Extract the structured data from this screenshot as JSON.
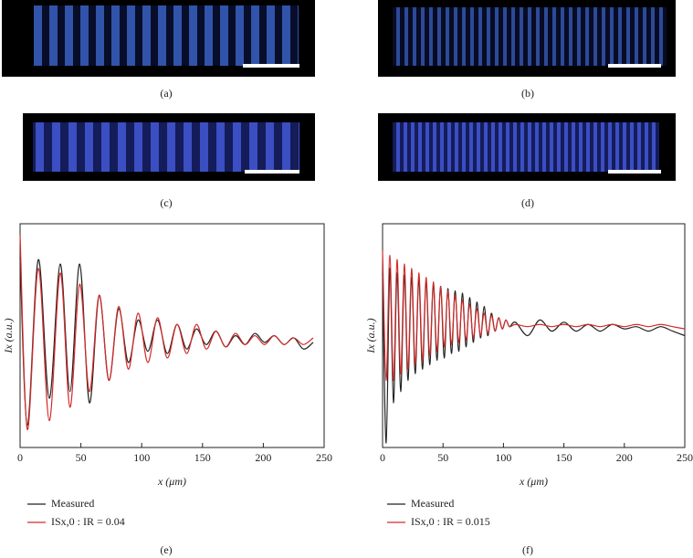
{
  "figure": {
    "panel_labels": [
      "(a)",
      "(b)",
      "(c)",
      "(d)",
      "(e)",
      "(f)"
    ]
  },
  "chart_data": [
    {
      "type": "line",
      "x_label": "x (μm)",
      "y_label": "Ix (a.u.)",
      "x": [
        0,
        6,
        15,
        24,
        33,
        41,
        49,
        57,
        65,
        73,
        81,
        89,
        97,
        105,
        113,
        121,
        129,
        137,
        145,
        153,
        161,
        169,
        177,
        185,
        193,
        201,
        209,
        217,
        225,
        233,
        241
      ],
      "series": [
        {
          "name": "Measured",
          "color": "#222222",
          "values": [
            0.85,
            0.1,
            0.84,
            0.22,
            0.82,
            0.25,
            0.82,
            0.2,
            0.68,
            0.3,
            0.62,
            0.38,
            0.57,
            0.43,
            0.57,
            0.42,
            0.55,
            0.44,
            0.53,
            0.46,
            0.52,
            0.45,
            0.5,
            0.46,
            0.51,
            0.47,
            0.5,
            0.46,
            0.49,
            0.44,
            0.47
          ]
        },
        {
          "name": "ISx,0 : IR = 0.04",
          "color": "#d42a2a",
          "values": [
            0.95,
            0.08,
            0.8,
            0.12,
            0.78,
            0.18,
            0.73,
            0.25,
            0.68,
            0.3,
            0.63,
            0.35,
            0.6,
            0.38,
            0.58,
            0.4,
            0.55,
            0.42,
            0.55,
            0.44,
            0.52,
            0.45,
            0.51,
            0.46,
            0.5,
            0.46,
            0.5,
            0.46,
            0.49,
            0.46,
            0.49
          ]
        }
      ],
      "xlim": [
        0,
        250
      ],
      "xticks": [
        0,
        50,
        100,
        150,
        200,
        250
      ],
      "ylim": [
        0,
        1
      ]
    },
    {
      "type": "line",
      "x_label": "x (μm)",
      "y_label": "Ix (a.u.)",
      "x": [
        0,
        3,
        6,
        9,
        12,
        15,
        18,
        21,
        24,
        27,
        30,
        33,
        36,
        39,
        42,
        45,
        48,
        51,
        54,
        57,
        60,
        63,
        66,
        69,
        72,
        75,
        78,
        81,
        84,
        87,
        90,
        93,
        96,
        99,
        102,
        105,
        110,
        120,
        130,
        140,
        150,
        160,
        170,
        180,
        190,
        200,
        210,
        220,
        230,
        240,
        250
      ],
      "series": [
        {
          "name": "Measured",
          "color": "#222222",
          "values": [
            0.78,
            0.02,
            0.8,
            0.2,
            0.78,
            0.25,
            0.77,
            0.3,
            0.76,
            0.33,
            0.75,
            0.35,
            0.74,
            0.37,
            0.73,
            0.39,
            0.72,
            0.4,
            0.71,
            0.42,
            0.7,
            0.43,
            0.69,
            0.45,
            0.67,
            0.47,
            0.65,
            0.49,
            0.63,
            0.5,
            0.6,
            0.52,
            0.58,
            0.53,
            0.57,
            0.54,
            0.56,
            0.5,
            0.57,
            0.52,
            0.56,
            0.52,
            0.55,
            0.52,
            0.55,
            0.53,
            0.54,
            0.52,
            0.54,
            0.52,
            0.5
          ]
        },
        {
          "name": "ISx,0 : IR = 0.015",
          "color": "#d42a2a",
          "values": [
            0.88,
            0.3,
            0.86,
            0.3,
            0.84,
            0.33,
            0.82,
            0.35,
            0.8,
            0.37,
            0.78,
            0.39,
            0.76,
            0.41,
            0.74,
            0.43,
            0.72,
            0.45,
            0.7,
            0.46,
            0.68,
            0.47,
            0.66,
            0.48,
            0.64,
            0.49,
            0.62,
            0.5,
            0.6,
            0.51,
            0.59,
            0.52,
            0.58,
            0.53,
            0.57,
            0.54,
            0.55,
            0.54,
            0.55,
            0.54,
            0.55,
            0.54,
            0.55,
            0.54,
            0.55,
            0.54,
            0.55,
            0.54,
            0.55,
            0.54,
            0.53
          ]
        }
      ],
      "xlim": [
        0,
        250
      ],
      "xticks": [
        0,
        50,
        100,
        150,
        200,
        250
      ],
      "ylim": [
        0,
        1
      ]
    }
  ]
}
